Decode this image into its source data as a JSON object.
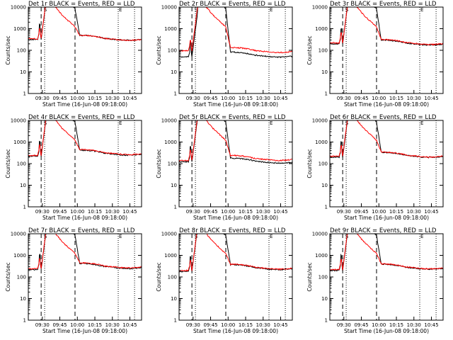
{
  "panels": [
    {
      "title": "Det 1r BLACK = Events, RED = LLD",
      "ylabel": "Counts/sec",
      "xlabel": "Start Time (16-Jun-08 09:18:00)",
      "xticks": [
        "09:30",
        "09:45",
        "10:00",
        "10:15",
        "10:30",
        "10:45"
      ],
      "yticks": [
        "1",
        "10",
        "100",
        "1000",
        "10000"
      ],
      "black_baseline": 320,
      "red_baseline": 340,
      "black_late": 330,
      "red_late": 330,
      "markers": [
        "S",
        "E"
      ]
    },
    {
      "title": "Det 2r BLACK = Events, RED = LLD",
      "ylabel": "Counts/sec",
      "xlabel": "Start Time (16-Jun-08 09:18:00)",
      "xticks": [
        "09:30",
        "09:45",
        "10:00",
        "10:15",
        "10:30",
        "10:45"
      ],
      "yticks": [
        "1",
        "10",
        "100",
        "1000",
        "10000"
      ],
      "black_baseline": 50,
      "red_baseline": 95,
      "black_late": 55,
      "red_late": 90,
      "markers": [
        "S",
        "E"
      ]
    },
    {
      "title": "Det 3r BLACK = Events, RED = LLD",
      "ylabel": "Counts/sec",
      "xlabel": "Start Time (16-Jun-08 09:18:00)",
      "xticks": [
        "09:30",
        "09:45",
        "10:00",
        "10:15",
        "10:30",
        "10:45"
      ],
      "yticks": [
        "1",
        "10",
        "100",
        "1000",
        "10000"
      ],
      "black_baseline": 200,
      "red_baseline": 220,
      "black_late": 200,
      "red_late": 210,
      "markers": [
        "S",
        "E"
      ]
    },
    {
      "title": "Det 4r BLACK = Events, RED = LLD",
      "ylabel": "Counts/sec",
      "xlabel": "Start Time (16-Jun-08 09:18:00)",
      "xticks": [
        "09:30",
        "09:45",
        "10:00",
        "10:15",
        "10:30",
        "10:45"
      ],
      "yticks": [
        "1",
        "10",
        "100",
        "1000",
        "10000"
      ],
      "black_baseline": 220,
      "red_baseline": 240,
      "black_late": 280,
      "red_late": 300,
      "markers": [
        "S",
        "E"
      ]
    },
    {
      "title": "Det 5r BLACK = Events, RED = LLD",
      "ylabel": "Counts/sec",
      "xlabel": "Start Time (16-Jun-08 09:18:00)",
      "xticks": [
        "09:30",
        "09:45",
        "10:00",
        "10:15",
        "10:30",
        "10:45"
      ],
      "yticks": [
        "1",
        "10",
        "100",
        "1000",
        "10000"
      ],
      "black_baseline": 120,
      "red_baseline": 140,
      "black_late": 120,
      "red_late": 160,
      "markers": [
        "S",
        "E"
      ]
    },
    {
      "title": "Det 6r BLACK = Events, RED = LLD",
      "ylabel": "Counts/sec",
      "xlabel": "Start Time (16-Jun-08 09:18:00)",
      "xticks": [
        "09:30",
        "09:45",
        "10:00",
        "10:15",
        "10:30",
        "10:45"
      ],
      "yticks": [
        "1",
        "10",
        "100",
        "1000",
        "10000"
      ],
      "black_baseline": 200,
      "red_baseline": 220,
      "black_late": 220,
      "red_late": 230,
      "markers": [
        "S",
        "E"
      ]
    },
    {
      "title": "Det 7r BLACK = Events, RED = LLD",
      "ylabel": "Counts/sec",
      "xlabel": "Start Time (16-Jun-08 09:18:00)",
      "xticks": [
        "09:30",
        "09:45",
        "10:00",
        "10:15",
        "10:30",
        "10:45"
      ],
      "yticks": [
        "1",
        "10",
        "100",
        "1000",
        "10000"
      ],
      "black_baseline": 220,
      "red_baseline": 240,
      "black_late": 280,
      "red_late": 300,
      "markers": [
        "S",
        "E"
      ]
    },
    {
      "title": "Det 8r BLACK = Events, RED = LLD",
      "ylabel": "Counts/sec",
      "xlabel": "Start Time (16-Jun-08 09:18:00)",
      "xticks": [
        "09:30",
        "09:45",
        "10:00",
        "10:15",
        "10:30",
        "10:45"
      ],
      "yticks": [
        "1",
        "10",
        "100",
        "1000",
        "10000"
      ],
      "black_baseline": 180,
      "red_baseline": 200,
      "black_late": 250,
      "red_late": 260,
      "markers": [
        "S",
        "E"
      ]
    },
    {
      "title": "Det 9r BLACK = Events, RED = LLD",
      "ylabel": "Counts/sec",
      "xlabel": "Start Time (16-Jun-08 09:18:00)",
      "xticks": [
        "09:30",
        "09:45",
        "10:00",
        "10:15",
        "10:30",
        "10:45"
      ],
      "yticks": [
        "1",
        "10",
        "100",
        "1000",
        "10000"
      ],
      "black_baseline": 200,
      "red_baseline": 220,
      "black_late": 260,
      "red_late": 270,
      "markers": [
        "S",
        "E"
      ]
    }
  ],
  "chart_data": {
    "type": "line",
    "layout": "3x3 grid of panels",
    "y_scale": "log",
    "ylim": [
      1,
      10000
    ],
    "xlim": [
      "09:18",
      "10:55"
    ],
    "x_ticks": [
      "09:30",
      "09:45",
      "10:00",
      "10:15",
      "10:30",
      "10:45"
    ],
    "colors": {
      "events": "#000000",
      "lld": "#ff0000"
    },
    "vertical_lines": [
      {
        "time": "09:29",
        "style": "dashed"
      },
      {
        "time": "09:32",
        "style": "dotted"
      },
      {
        "time": "09:58",
        "style": "dashed"
      },
      {
        "time": "10:35",
        "style": "dotted"
      },
      {
        "time": "10:49",
        "style": "dotted"
      }
    ],
    "series_shape_minutes": [
      {
        "t": "09:18",
        "note": "baseline"
      },
      {
        "t": "09:27",
        "note": "rise begins"
      },
      {
        "t": "09:33",
        "note": "saturates above 10000"
      },
      {
        "t": "09:57",
        "note": "falls back"
      },
      {
        "t": "10:55",
        "note": "late level"
      }
    ]
  }
}
